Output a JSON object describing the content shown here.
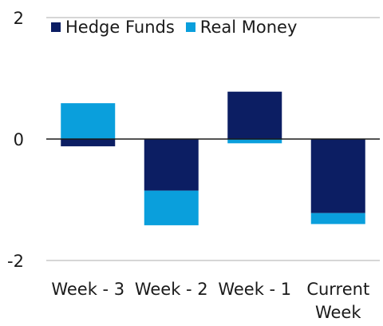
{
  "chart_data": {
    "type": "bar",
    "stacked": true,
    "categories": [
      [
        "Week - 3"
      ],
      [
        "Week - 2"
      ],
      [
        "Week - 1"
      ],
      [
        "Current",
        "Week"
      ]
    ],
    "series": [
      {
        "name": "Hedge Funds",
        "color": "#0c1e63",
        "values": [
          -0.12,
          -0.85,
          0.78,
          -1.22
        ]
      },
      {
        "name": "Real Money",
        "color": "#0a9fdc",
        "values": [
          0.59,
          -0.57,
          -0.07,
          -0.18
        ]
      }
    ],
    "ylim": [
      -2,
      2
    ],
    "yticks": [
      "2",
      "0",
      "-2"
    ],
    "ytick_values": [
      2,
      0,
      -2
    ],
    "grid": "horizontal at -2, 0, 2",
    "legend_position": "top-left"
  }
}
